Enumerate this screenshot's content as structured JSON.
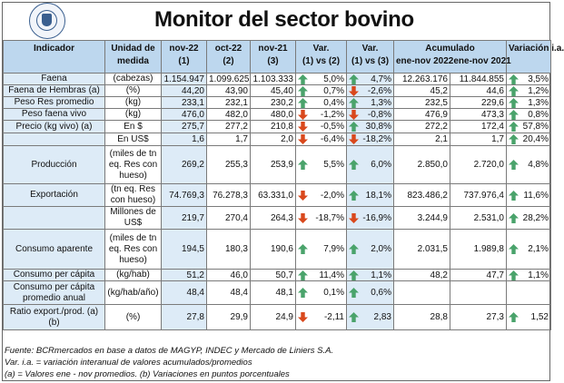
{
  "title": "Monitor del sector bovino",
  "header": {
    "indicador": "Indicador",
    "unidad": "Unidad de medida",
    "c1": "nov-22",
    "c1n": "(1)",
    "c2": "oct-22",
    "c2n": "(2)",
    "c3": "nov-21",
    "c3n": "(3)",
    "v12": "Var.",
    "v12n": "(1) vs (2)",
    "v13": "Var.",
    "v13n": "(1) vs (3)",
    "acum": "Acumulado",
    "acum1": "ene-nov 2022",
    "acum2": "ene-nov 2021",
    "variacion": "Variación i.a."
  },
  "rows": [
    {
      "label": "Faena",
      "unit": "(cabezas)",
      "c1": "1.154.947",
      "c2": "1.099.625",
      "c3": "1.103.333",
      "v12": "5,0%",
      "v12d": "up",
      "v13": "4,7%",
      "v13d": "up",
      "a1": "12.263.176",
      "a2": "11.844.855",
      "via": "3,5%",
      "viad": "up"
    },
    {
      "label": "Faena de Hembras (a)",
      "unit": "(%)",
      "c1": "44,20",
      "c2": "43,90",
      "c3": "45,40",
      "v12": "0,7%",
      "v12d": "up",
      "v13": "-2,6%",
      "v13d": "down",
      "a1": "45,2",
      "a2": "44,6",
      "via": "1,2%",
      "viad": "up"
    },
    {
      "label": "Peso Res promedio",
      "unit": "(kg)",
      "c1": "233,1",
      "c2": "232,1",
      "c3": "230,2",
      "v12": "0,4%",
      "v12d": "up",
      "v13": "1,3%",
      "v13d": "up",
      "a1": "232,5",
      "a2": "229,6",
      "via": "1,3%",
      "viad": "up"
    },
    {
      "label": "Peso faena vivo",
      "unit": "(kg)",
      "c1": "476,0",
      "c2": "482,0",
      "c3": "480,0",
      "v12": "-1,2%",
      "v12d": "down",
      "v13": "-0,8%",
      "v13d": "down",
      "a1": "476,9",
      "a2": "473,3",
      "via": "0,8%",
      "viad": "up"
    },
    {
      "label": "Precio (kg vivo) (a)",
      "unit": "En $",
      "c1": "275,7",
      "c2": "277,2",
      "c3": "210,8",
      "v12": "-0,5%",
      "v12d": "down",
      "v13": "30,8%",
      "v13d": "up",
      "a1": "272,2",
      "a2": "172,4",
      "via": "57,8%",
      "viad": "up"
    },
    {
      "label": "",
      "unit": "En US$",
      "c1": "1,6",
      "c2": "1,7",
      "c3": "2,0",
      "v12": "-6,4%",
      "v12d": "down",
      "v13": "-18,2%",
      "v13d": "down",
      "a1": "2,1",
      "a2": "1,7",
      "via": "20,4%",
      "viad": "up"
    },
    {
      "label": "Producción",
      "unit": "(miles de tn eq. Res con hueso)",
      "c1": "269,2",
      "c2": "255,3",
      "c3": "253,9",
      "v12": "5,5%",
      "v12d": "up",
      "v13": "6,0%",
      "v13d": "up",
      "a1": "2.850,0",
      "a2": "2.720,0",
      "via": "4,8%",
      "viad": "up"
    },
    {
      "label": "Exportación",
      "unit": "(tn eq. Res con hueso)",
      "c1": "74.769,3",
      "c2": "76.278,3",
      "c3": "63.331,0",
      "v12": "-2,0%",
      "v12d": "down",
      "v13": "18,1%",
      "v13d": "up",
      "a1": "823.486,2",
      "a2": "737.976,4",
      "via": "11,6%",
      "viad": "up"
    },
    {
      "label": "",
      "unit": "Millones de US$",
      "c1": "219,7",
      "c2": "270,4",
      "c3": "264,3",
      "v12": "-18,7%",
      "v12d": "down",
      "v13": "-16,9%",
      "v13d": "down",
      "a1": "3.244,9",
      "a2": "2.531,0",
      "via": "28,2%",
      "viad": "up"
    },
    {
      "label": "Consumo aparente",
      "unit": "(miles de tn eq. Res con hueso)",
      "c1": "194,5",
      "c2": "180,3",
      "c3": "190,6",
      "v12": "7,9%",
      "v12d": "up",
      "v13": "2,0%",
      "v13d": "up",
      "a1": "2.031,5",
      "a2": "1.989,8",
      "via": "2,1%",
      "viad": "up"
    },
    {
      "label": "Consumo per cápita",
      "unit": "(kg/hab)",
      "c1": "51,2",
      "c2": "46,0",
      "c3": "50,7",
      "v12": "11,4%",
      "v12d": "up",
      "v13": "1,1%",
      "v13d": "up",
      "a1": "48,2",
      "a2": "47,7",
      "via": "1,1%",
      "viad": "up"
    },
    {
      "label": "Consumo per cápita promedio anual",
      "unit": "(kg/hab/año)",
      "c1": "48,4",
      "c2": "48,4",
      "c3": "48,1",
      "v12": "0,1%",
      "v12d": "up",
      "v13": "0,6%",
      "v13d": "up",
      "a1": "",
      "a2": "",
      "via": "",
      "viad": ""
    },
    {
      "label": "Ratio export./prod. (a)(b)",
      "unit": "(%)",
      "c1": "27,8",
      "c2": "29,9",
      "c3": "24,9",
      "v12": "-2,11",
      "v12d": "down",
      "v13": "2,83",
      "v13d": "up",
      "a1": "28,8",
      "a2": "27,3",
      "via": "1,52",
      "viad": "up"
    }
  ],
  "footer": {
    "line1": "Fuente: BCRmercados en base a datos de MAGYP, INDEC y Mercado de Liniers S.A.",
    "line2": "Var. i.a. = variación interanual de valores acumulados/promedios",
    "line3": "(a) = Valores ene - nov promedios. (b) Variaciones en puntos porcentuales"
  },
  "colors": {
    "header_bg": "#bdd7ee",
    "shade_bg": "#ddebf7",
    "up": "#4aa36b",
    "down": "#d9481c"
  }
}
